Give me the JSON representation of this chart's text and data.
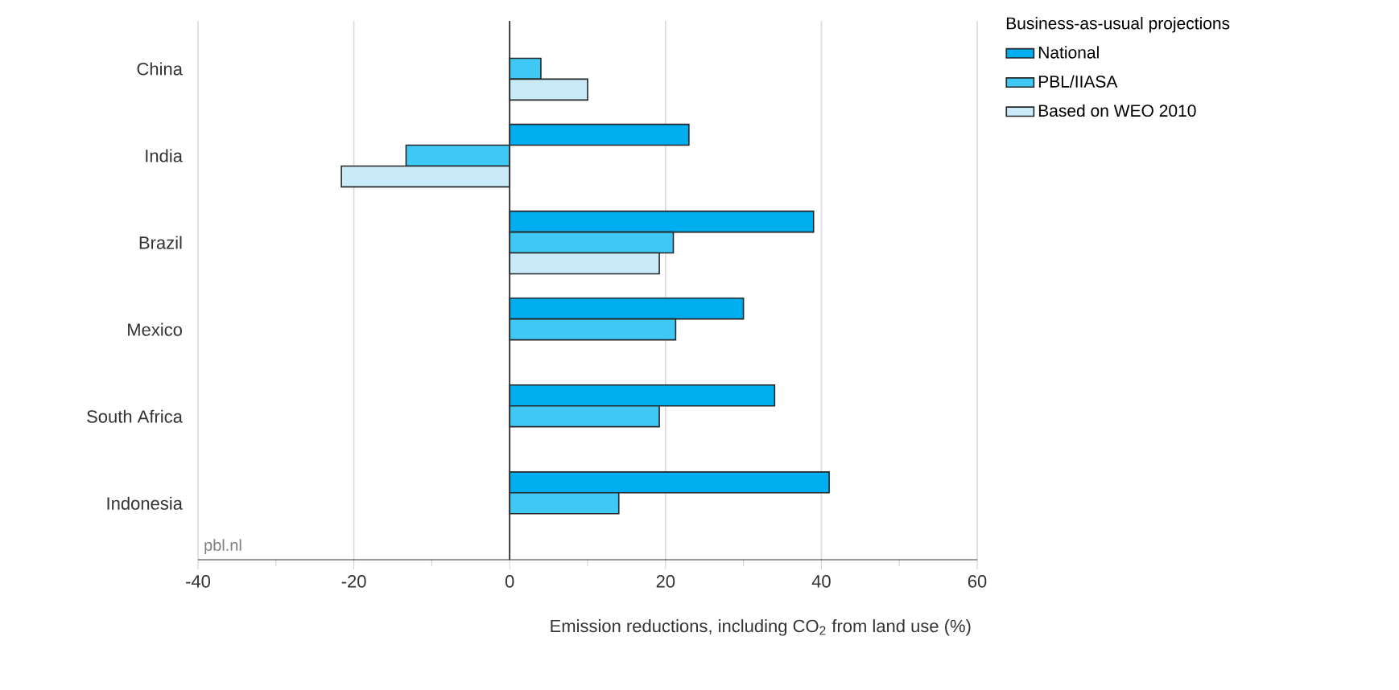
{
  "chart_data": {
    "type": "bar",
    "orientation": "horizontal",
    "categories": [
      "China",
      "India",
      "Brazil",
      "Mexico",
      "South Africa",
      "Indonesia"
    ],
    "series": [
      {
        "name": "National",
        "color": "#00aeef",
        "values": [
          null,
          23,
          39,
          30,
          34,
          41
        ]
      },
      {
        "name": "PBL/IIASA",
        "color": "#40c8f4",
        "values": [
          4,
          -13.3,
          21,
          21.3,
          19.2,
          14
        ]
      },
      {
        "name": "Based on WEO 2010",
        "color": "#c8eaf9",
        "values": [
          10,
          -21.6,
          19.2,
          null,
          null,
          null
        ]
      }
    ],
    "xlabel": "Emission reductions, including CO$_{2}$ from land use (%)",
    "legend_title": "Business-as-usual projections",
    "xlim": [
      -40,
      60
    ],
    "xticks": [
      -40,
      -20,
      0,
      20,
      40,
      60
    ],
    "grid": "x",
    "legend": "top right",
    "annotations": [
      "pbl.nl"
    ]
  }
}
